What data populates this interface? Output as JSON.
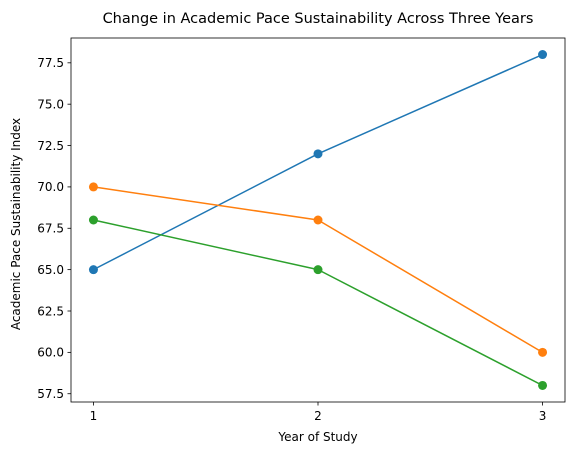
{
  "chart_data": {
    "type": "line",
    "title": "Change in Academic Pace Sustainability Across Three Years",
    "xlabel": "Year of Study",
    "ylabel": "Academic Pace Sustainability Index",
    "x": [
      1,
      2,
      3
    ],
    "x_tick_labels": [
      "1",
      "2",
      "3"
    ],
    "y_ticks": [
      57.5,
      60.0,
      62.5,
      65.0,
      67.5,
      70.0,
      72.5,
      75.0,
      77.5
    ],
    "y_tick_labels": [
      "57.5",
      "60.0",
      "62.5",
      "65.0",
      "67.5",
      "70.0",
      "72.5",
      "75.0",
      "77.5"
    ],
    "xlim": [
      0.9,
      3.1
    ],
    "ylim": [
      57.0,
      79.0
    ],
    "grid": false,
    "series": [
      {
        "values": [
          65,
          72,
          78
        ],
        "color": "#1f77b4",
        "marker": "circle"
      },
      {
        "values": [
          70,
          68,
          60
        ],
        "color": "#ff7f0e",
        "marker": "circle"
      },
      {
        "values": [
          68,
          65,
          58
        ],
        "color": "#2ca02c",
        "marker": "circle"
      }
    ]
  }
}
